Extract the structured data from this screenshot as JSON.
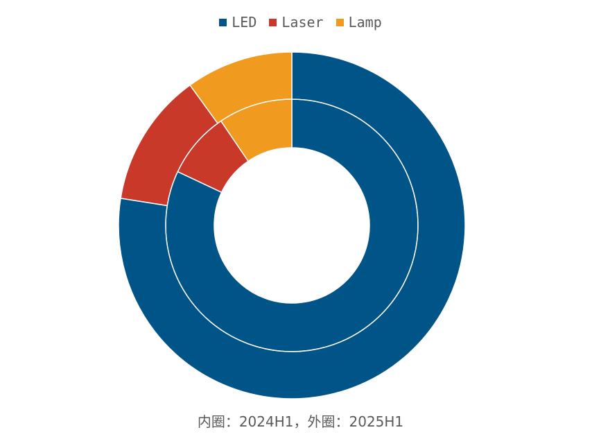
{
  "chart_data": {
    "type": "pie",
    "subtype": "nested-donut",
    "categories": [
      "LED",
      "Laser",
      "Lamp"
    ],
    "colors": [
      "#005488",
      "#c9392a",
      "#f09a1f"
    ],
    "series": [
      {
        "ring": "inner",
        "values": [
          82.0,
          8.5,
          9.5
        ]
      },
      {
        "ring": "outer",
        "values": [
          77.5,
          12.5,
          10.0
        ]
      }
    ],
    "legend_position": "top-center",
    "caption": "内圈：2024H1，外圈：2025H1"
  }
}
